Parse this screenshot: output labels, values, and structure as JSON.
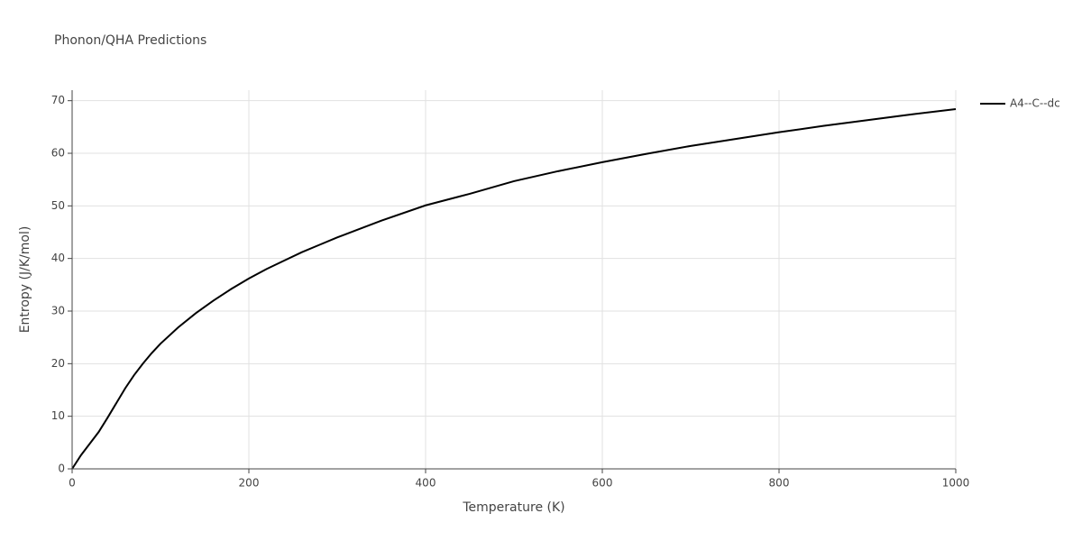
{
  "chart_data": {
    "type": "line",
    "title": "Phonon/QHA Predictions",
    "x_label": "Temperature (K)",
    "y_label": "Entropy (J/K/mol)",
    "x": [
      0,
      10,
      20,
      30,
      40,
      50,
      60,
      70,
      80,
      90,
      100,
      120,
      140,
      160,
      180,
      200,
      220,
      240,
      260,
      280,
      300,
      350,
      400,
      450,
      500,
      550,
      600,
      650,
      700,
      750,
      800,
      850,
      900,
      950,
      1000
    ],
    "series": [
      {
        "name": "A4--C--dc",
        "color": "#000000",
        "values": [
          0,
          2.6,
          4.8,
          7.0,
          9.7,
          12.5,
          15.3,
          17.8,
          20.0,
          22.0,
          23.8,
          26.9,
          29.6,
          32.0,
          34.2,
          36.2,
          38.0,
          39.6,
          41.2,
          42.6,
          44.0,
          47.2,
          50.1,
          52.3,
          54.7,
          56.6,
          58.3,
          59.9,
          61.4,
          62.7,
          64.0,
          65.2,
          66.3,
          67.4,
          68.4
        ]
      }
    ],
    "xlim": [
      0,
      1000
    ],
    "xticks": [
      0,
      200,
      400,
      600,
      800,
      1000
    ],
    "ylim": [
      0,
      72
    ],
    "yticks": [
      0,
      10,
      20,
      30,
      40,
      50,
      60,
      70
    ],
    "grid": true,
    "legend": "right"
  }
}
